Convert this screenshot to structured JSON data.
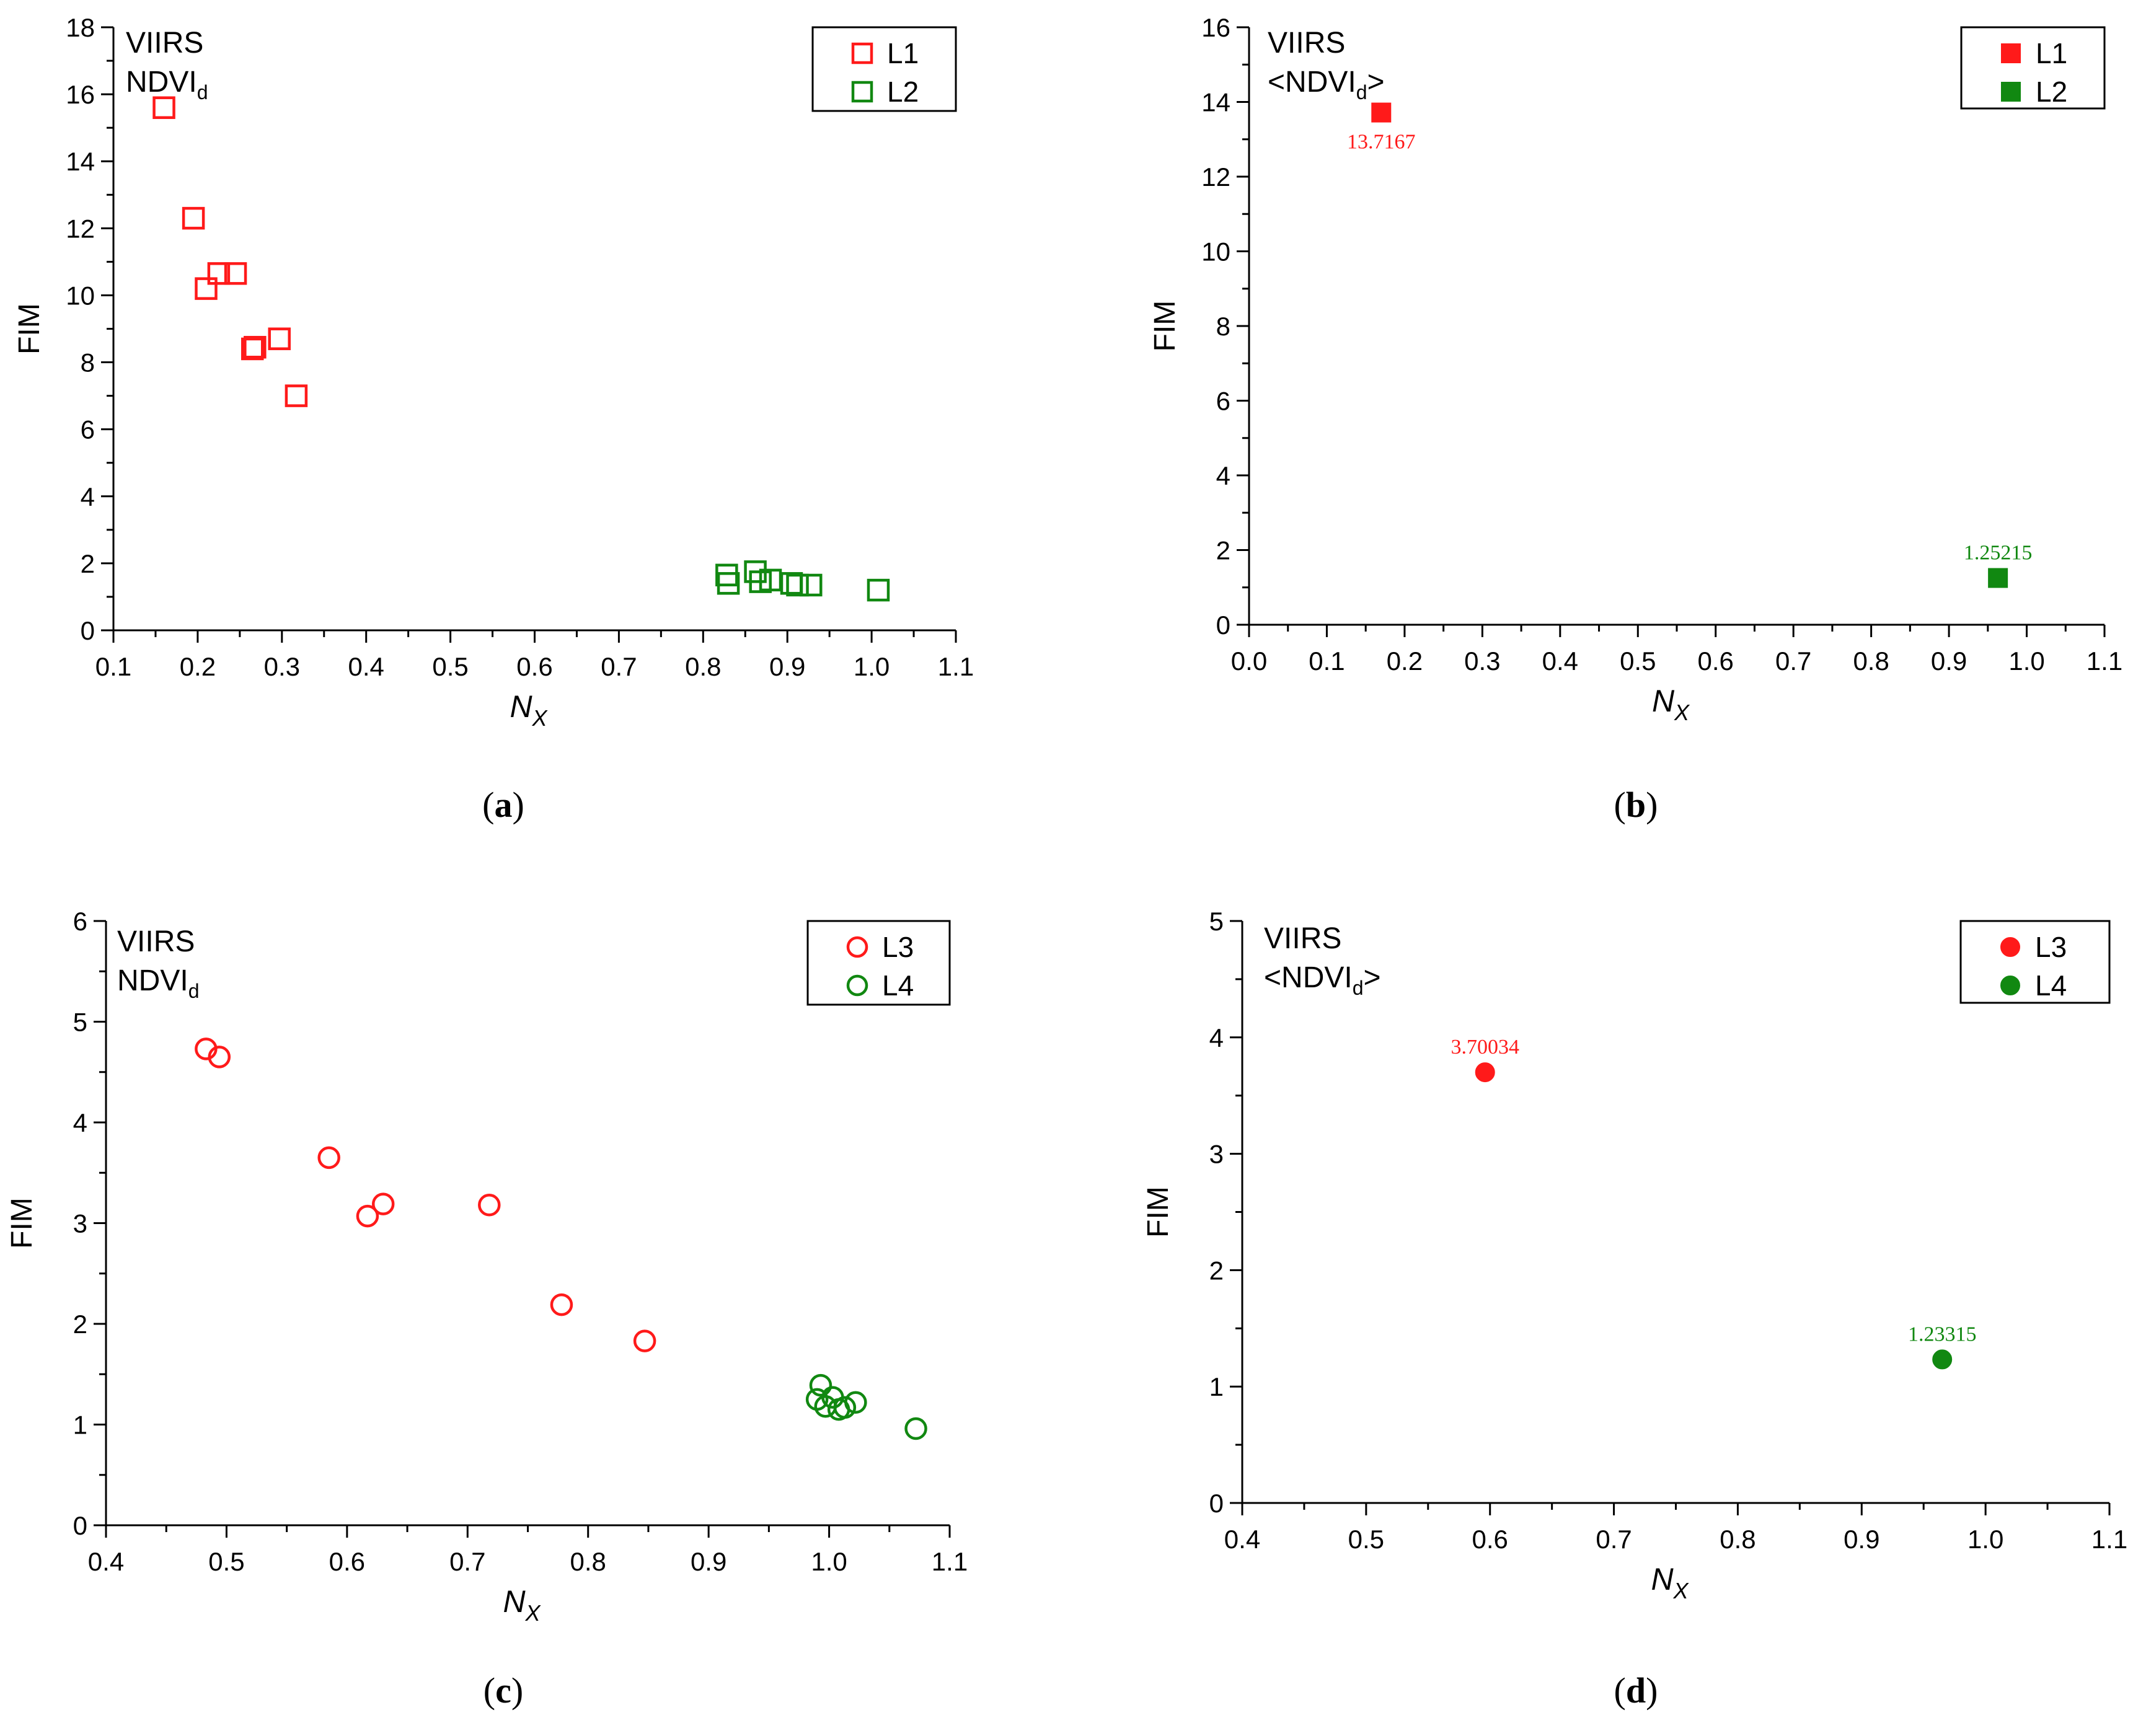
{
  "figure": {
    "panels": [
      {
        "id": "a",
        "caption": "a",
        "marker": "square",
        "filled": false,
        "title_line1": "VIIRS",
        "title_line2": "NDVI",
        "title_sub": "d",
        "title_brackets": false,
        "xlabel": "N",
        "xlabel_sub": "X",
        "ylabel": "FIM",
        "xticks": [
          "0.1",
          "0.2",
          "0.3",
          "0.4",
          "0.5",
          "0.6",
          "0.7",
          "0.8",
          "0.9",
          "1.0",
          "1.1"
        ],
        "yticks": [
          "0",
          "2",
          "4",
          "6",
          "8",
          "10",
          "12",
          "14",
          "16",
          "18"
        ]
      },
      {
        "id": "b",
        "caption": "b",
        "marker": "square",
        "filled": true,
        "title_line1": "VIIRS",
        "title_line2": "NDVI",
        "title_sub": "d",
        "title_brackets": true,
        "xlabel": "N",
        "xlabel_sub": "X",
        "ylabel": "FIM",
        "xticks": [
          "0.0",
          "0.1",
          "0.2",
          "0.3",
          "0.4",
          "0.5",
          "0.6",
          "0.7",
          "0.8",
          "0.9",
          "1.0",
          "1.1"
        ],
        "yticks": [
          "0",
          "2",
          "4",
          "6",
          "8",
          "10",
          "12",
          "14",
          "16"
        ],
        "data_labels": [
          "13.7167",
          "1.25215"
        ]
      },
      {
        "id": "c",
        "caption": "c",
        "marker": "circle",
        "filled": false,
        "title_line1": "VIIRS",
        "title_line2": "NDVI",
        "title_sub": "d",
        "title_brackets": false,
        "xlabel": "N",
        "xlabel_sub": "X",
        "ylabel": "FIM",
        "xticks": [
          "0.4",
          "0.5",
          "0.6",
          "0.7",
          "0.8",
          "0.9",
          "1.0",
          "1.1"
        ],
        "yticks": [
          "0",
          "1",
          "2",
          "3",
          "4",
          "5",
          "6"
        ]
      },
      {
        "id": "d",
        "caption": "d",
        "marker": "circle",
        "filled": true,
        "title_line1": "VIIRS",
        "title_line2": "NDVI",
        "title_sub": "d",
        "title_brackets": true,
        "xlabel": "N",
        "xlabel_sub": "X",
        "ylabel": "FIM",
        "xticks": [
          "0.4",
          "0.5",
          "0.6",
          "0.7",
          "0.8",
          "0.9",
          "1.0",
          "1.1"
        ],
        "yticks": [
          "0",
          "1",
          "2",
          "3",
          "4",
          "5"
        ],
        "data_labels": [
          "3.70034",
          "1.23315"
        ]
      }
    ]
  },
  "colors": {
    "red": "#ff1a1a",
    "green": "#118811",
    "axis": "#000000"
  },
  "chart_data": [
    {
      "type": "scatter",
      "panel": "a",
      "title": "VIIRS NDVId",
      "xlabel": "NX",
      "ylabel": "FIM",
      "xlim": [
        0.1,
        1.1
      ],
      "ylim": [
        0,
        18
      ],
      "legend_position": "top-right",
      "series": [
        {
          "name": "L1",
          "color": "#ff1a1a",
          "points": [
            [
              0.16,
              15.6
            ],
            [
              0.195,
              12.3
            ],
            [
              0.21,
              10.2
            ],
            [
              0.225,
              10.65
            ],
            [
              0.245,
              10.65
            ],
            [
              0.265,
              8.4
            ],
            [
              0.268,
              8.45
            ],
            [
              0.297,
              8.7
            ],
            [
              0.317,
              7.0
            ]
          ]
        },
        {
          "name": "L2",
          "color": "#118811",
          "points": [
            [
              0.828,
              1.65
            ],
            [
              0.83,
              1.4
            ],
            [
              0.862,
              1.75
            ],
            [
              0.868,
              1.45
            ],
            [
              0.88,
              1.5
            ],
            [
              0.905,
              1.4
            ],
            [
              0.912,
              1.35
            ],
            [
              0.928,
              1.35
            ],
            [
              1.008,
              1.2
            ]
          ]
        }
      ]
    },
    {
      "type": "scatter",
      "panel": "b",
      "title": "VIIRS <NDVId>",
      "xlabel": "NX",
      "ylabel": "FIM",
      "xlim": [
        0.0,
        1.1
      ],
      "ylim": [
        0,
        16
      ],
      "legend_position": "top-right",
      "series": [
        {
          "name": "L1",
          "color": "#ff1a1a",
          "points": [
            [
              0.17,
              13.7167
            ]
          ],
          "labels": [
            "13.7167"
          ]
        },
        {
          "name": "L2",
          "color": "#118811",
          "points": [
            [
              0.963,
              1.25215
            ]
          ],
          "labels": [
            "1.25215"
          ]
        }
      ]
    },
    {
      "type": "scatter",
      "panel": "c",
      "title": "VIIRS NDVId",
      "xlabel": "NX",
      "ylabel": "FIM",
      "xlim": [
        0.4,
        1.1
      ],
      "ylim": [
        0,
        6
      ],
      "legend_position": "top-right",
      "series": [
        {
          "name": "L3",
          "color": "#ff1a1a",
          "points": [
            [
              0.483,
              4.73
            ],
            [
              0.494,
              4.65
            ],
            [
              0.585,
              3.65
            ],
            [
              0.617,
              3.07
            ],
            [
              0.63,
              3.19
            ],
            [
              0.718,
              3.18
            ],
            [
              0.778,
              2.19
            ],
            [
              0.847,
              1.83
            ]
          ]
        },
        {
          "name": "L4",
          "color": "#118811",
          "points": [
            [
              0.99,
              1.25
            ],
            [
              0.993,
              1.39
            ],
            [
              0.997,
              1.18
            ],
            [
              1.003,
              1.27
            ],
            [
              1.008,
              1.15
            ],
            [
              1.013,
              1.17
            ],
            [
              1.022,
              1.22
            ],
            [
              1.072,
              0.96
            ]
          ]
        }
      ]
    },
    {
      "type": "scatter",
      "panel": "d",
      "title": "VIIRS <NDVId>",
      "xlabel": "NX",
      "ylabel": "FIM",
      "xlim": [
        0.4,
        1.1
      ],
      "ylim": [
        0,
        5
      ],
      "legend_position": "top-right",
      "series": [
        {
          "name": "L3",
          "color": "#ff1a1a",
          "points": [
            [
              0.596,
              3.70034
            ]
          ],
          "labels": [
            "3.70034"
          ]
        },
        {
          "name": "L4",
          "color": "#118811",
          "points": [
            [
              0.965,
              1.23315
            ]
          ],
          "labels": [
            "1.23315"
          ]
        }
      ]
    }
  ]
}
